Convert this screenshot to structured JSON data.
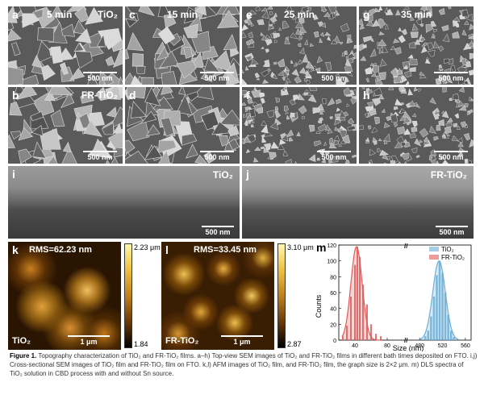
{
  "sem": [
    {
      "id": "a",
      "label": "a",
      "time": "5 min",
      "material": "TiO₂",
      "scale": "500 nm"
    },
    {
      "id": "c",
      "label": "c",
      "time": "15 min",
      "material": "",
      "scale": "500 nm"
    },
    {
      "id": "e",
      "label": "e",
      "time": "25 min",
      "material": "",
      "scale": "500 nm"
    },
    {
      "id": "g",
      "label": "g",
      "time": "35 min",
      "material": "",
      "scale": "500 nm"
    },
    {
      "id": "b",
      "label": "b",
      "time": "",
      "material": "FR-TiO₂",
      "scale": "500 nm"
    },
    {
      "id": "d",
      "label": "d",
      "time": "",
      "material": "",
      "scale": "500 nm"
    },
    {
      "id": "f",
      "label": "f",
      "time": "",
      "material": "",
      "scale": "500 nm"
    },
    {
      "id": "h",
      "label": "h",
      "time": "",
      "material": "",
      "scale": "500 nm"
    }
  ],
  "cross": [
    {
      "id": "i",
      "label": "i",
      "material": "TiO₂",
      "scale": "500 nm"
    },
    {
      "id": "j",
      "label": "j",
      "material": "FR-TiO₂",
      "scale": "500 nm"
    }
  ],
  "afm": [
    {
      "id": "k",
      "label": "k",
      "rms": "RMS=62.23 nm",
      "material": "TiO₂",
      "scale": "1 μm",
      "cb_max": "2.23 μm",
      "cb_min": "1.84"
    },
    {
      "id": "l",
      "label": "l",
      "rms": "RMS=33.45 nm",
      "material": "FR-TiO₂",
      "scale": "1 μm",
      "cb_max": "3.10 μm",
      "cb_min": "2.87"
    }
  ],
  "chart_data": {
    "type": "bar",
    "label": "m",
    "xlabel": "Size (nm)",
    "ylabel": "Counts",
    "ylim": [
      0,
      120
    ],
    "yticks": [
      "0",
      "20",
      "40",
      "60",
      "80",
      "100",
      "120"
    ],
    "xticks": [
      "40",
      "80",
      "480",
      "520",
      "560"
    ],
    "x_axis_break": true,
    "legend": [
      "TiO₂",
      "FR-TiO₂"
    ],
    "legend_position": "top-right",
    "series": [
      {
        "name": "TiO₂",
        "color": "#6baed6",
        "fit_peak": {
          "x": 514,
          "y": 100
        },
        "bars": [
          [
            490,
            5
          ],
          [
            495,
            12
          ],
          [
            500,
            30
          ],
          [
            505,
            55
          ],
          [
            510,
            82
          ],
          [
            515,
            100
          ],
          [
            520,
            85
          ],
          [
            525,
            60
          ],
          [
            530,
            32
          ],
          [
            535,
            12
          ],
          [
            540,
            4
          ]
        ]
      },
      {
        "name": "FR-TiO₂",
        "color": "#e05a5a",
        "fit_peak": {
          "x": 42,
          "y": 118
        },
        "bars": [
          [
            25,
            5
          ],
          [
            30,
            18
          ],
          [
            35,
            55
          ],
          [
            40,
            95
          ],
          [
            43,
            118
          ],
          [
            46,
            105
          ],
          [
            50,
            70
          ],
          [
            55,
            45
          ],
          [
            60,
            20
          ],
          [
            66,
            8
          ],
          [
            72,
            5
          ]
        ]
      }
    ]
  },
  "caption": {
    "head": "Figure 1.",
    "text": "Topography characterization of TiO₂ and FR-TiO₂ films. a–h) Top-view SEM images of TiO₂ and FR-TiO₂ films in different bath times deposited on FTO. i,j) Cross-sectional SEM images of TiO₂ film and FR-TiO₂ film on FTO. k,l) AFM images of TiO₂ film, and FR-TiO₂ film, the graph size is 2×2 μm. m) DLS spectra of TiO₂ solution in CBD process with and without Sn source."
  }
}
